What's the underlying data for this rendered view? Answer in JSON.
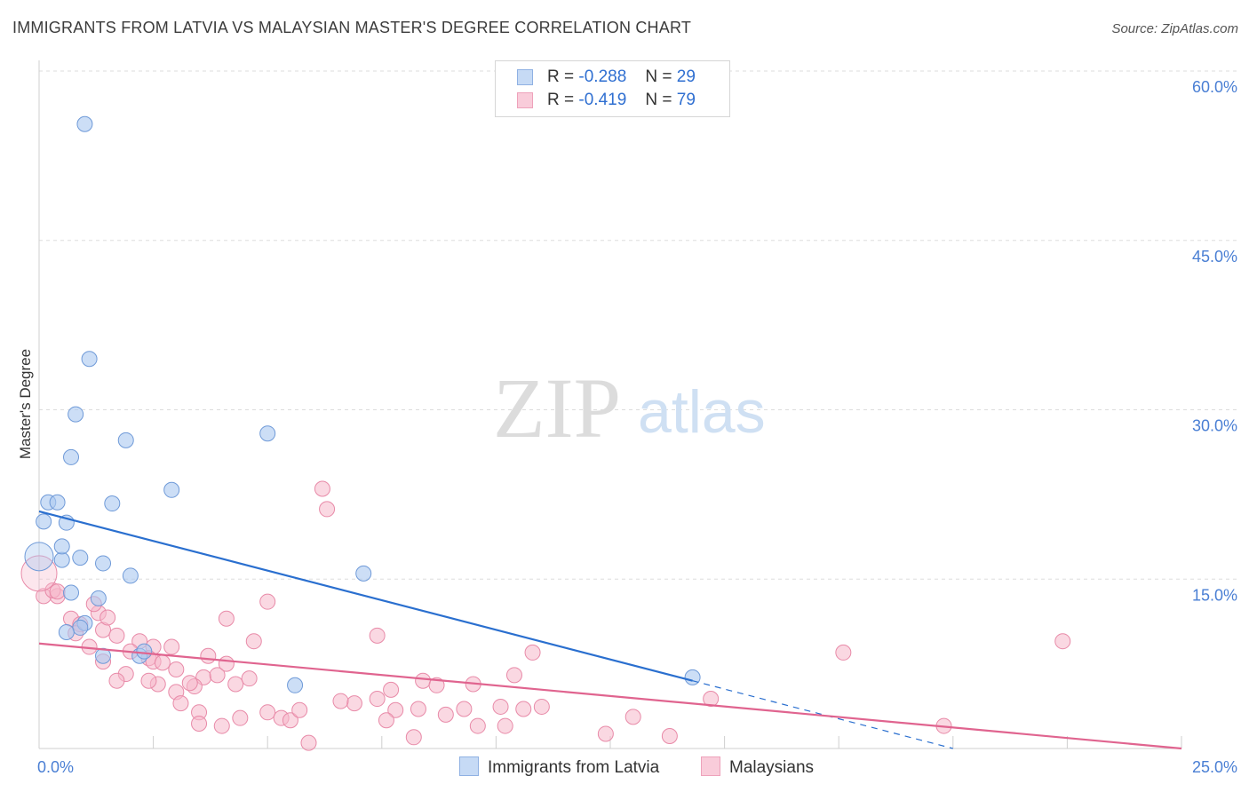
{
  "title": "IMMIGRANTS FROM LATVIA VS MALAYSIAN MASTER'S DEGREE CORRELATION CHART",
  "source": "Source: ZipAtlas.com",
  "watermark": {
    "zip": "ZIP",
    "atlas": "atlas"
  },
  "legend": {
    "rows": [
      {
        "r_label": "R =",
        "r_value": "-0.288",
        "n_label": "N =",
        "n_value": "29"
      },
      {
        "r_label": "R =",
        "r_value": "-0.419",
        "n_label": "N =",
        "n_value": "79"
      }
    ]
  },
  "colors": {
    "blue_fill": "#aac8f0",
    "blue_stroke": "#6f9ad8",
    "blue_line": "#2a6fcf",
    "pink_fill": "#f5b8cb",
    "pink_stroke": "#e88aa8",
    "pink_line": "#e0648f",
    "tick_text": "#4a7fd4",
    "grid": "#dddddd"
  },
  "chart_data": {
    "type": "scatter",
    "title": "IMMIGRANTS FROM LATVIA VS MALAYSIAN MASTER'S DEGREE CORRELATION CHART",
    "xlabel": "",
    "ylabel": "Master's Degree",
    "xlim": [
      0,
      25
    ],
    "ylim": [
      0,
      60
    ],
    "x_tick_labels": [
      "0.0%",
      "25.0%"
    ],
    "y_ticks": [
      15,
      30,
      45,
      60
    ],
    "y_tick_labels": [
      "15.0%",
      "30.0%",
      "45.0%",
      "60.0%"
    ],
    "grid": true,
    "series": [
      {
        "name": "Immigrants from Latvia",
        "color": "#aac8f0",
        "trend": {
          "x0": 0,
          "y0": 21.0,
          "x1": 14.3,
          "y1": 6.0,
          "dashed_to_x": 20.0,
          "dashed_to_y": 0.0
        },
        "points": [
          [
            0.2,
            21.8
          ],
          [
            0.4,
            21.8
          ],
          [
            0.6,
            20.0
          ],
          [
            0.1,
            20.1
          ],
          [
            0.5,
            16.7
          ],
          [
            0.9,
            16.9
          ],
          [
            0.5,
            17.9
          ],
          [
            1.0,
            55.3
          ],
          [
            1.1,
            34.5
          ],
          [
            0.8,
            29.6
          ],
          [
            0.7,
            25.8
          ],
          [
            1.9,
            27.3
          ],
          [
            2.9,
            22.9
          ],
          [
            1.6,
            21.7
          ],
          [
            1.4,
            16.4
          ],
          [
            2.0,
            15.3
          ],
          [
            5.0,
            27.9
          ],
          [
            7.1,
            15.5
          ],
          [
            1.3,
            13.3
          ],
          [
            1.0,
            11.1
          ],
          [
            0.9,
            10.7
          ],
          [
            0.6,
            10.3
          ],
          [
            1.4,
            8.2
          ],
          [
            2.2,
            8.2
          ],
          [
            2.3,
            8.6
          ],
          [
            5.6,
            5.6
          ],
          [
            14.3,
            6.3
          ],
          [
            0.0,
            17.0
          ],
          [
            0.7,
            13.8
          ]
        ]
      },
      {
        "name": "Malaysians",
        "color": "#f5b8cb",
        "trend": {
          "x0": 0,
          "y0": 9.3,
          "x1": 25,
          "y1": 0.0
        },
        "points": [
          [
            0.1,
            13.5
          ],
          [
            0.4,
            13.5
          ],
          [
            0.3,
            14.0
          ],
          [
            0.0,
            15.5
          ],
          [
            0.7,
            11.5
          ],
          [
            0.9,
            11.0
          ],
          [
            1.3,
            12.0
          ],
          [
            1.4,
            10.5
          ],
          [
            1.7,
            10.0
          ],
          [
            2.2,
            9.5
          ],
          [
            2.5,
            9.0
          ],
          [
            2.9,
            9.0
          ],
          [
            1.2,
            12.8
          ],
          [
            0.8,
            10.2
          ],
          [
            1.1,
            9.0
          ],
          [
            2.0,
            8.6
          ],
          [
            2.4,
            8.0
          ],
          [
            3.0,
            7.0
          ],
          [
            3.7,
            8.2
          ],
          [
            4.1,
            7.5
          ],
          [
            4.7,
            9.5
          ],
          [
            5.0,
            13.0
          ],
          [
            6.2,
            23.0
          ],
          [
            6.3,
            21.2
          ],
          [
            4.1,
            11.5
          ],
          [
            3.6,
            6.3
          ],
          [
            3.4,
            5.5
          ],
          [
            3.0,
            5.0
          ],
          [
            2.6,
            5.7
          ],
          [
            3.1,
            4.0
          ],
          [
            3.5,
            3.2
          ],
          [
            1.9,
            6.6
          ],
          [
            1.7,
            6.0
          ],
          [
            1.4,
            7.7
          ],
          [
            2.4,
            6.0
          ],
          [
            2.5,
            7.7
          ],
          [
            3.3,
            5.8
          ],
          [
            3.9,
            6.5
          ],
          [
            4.3,
            5.7
          ],
          [
            4.6,
            6.2
          ],
          [
            4.4,
            2.7
          ],
          [
            5.0,
            3.2
          ],
          [
            5.3,
            2.7
          ],
          [
            5.5,
            2.5
          ],
          [
            5.7,
            3.4
          ],
          [
            4.0,
            2.0
          ],
          [
            3.5,
            2.2
          ],
          [
            5.9,
            0.5
          ],
          [
            6.9,
            4.0
          ],
          [
            7.4,
            4.4
          ],
          [
            7.4,
            10.0
          ],
          [
            7.7,
            5.2
          ],
          [
            7.8,
            3.4
          ],
          [
            7.6,
            2.5
          ],
          [
            8.3,
            3.5
          ],
          [
            8.2,
            1.0
          ],
          [
            8.4,
            6.0
          ],
          [
            8.7,
            5.6
          ],
          [
            8.9,
            3.0
          ],
          [
            9.3,
            3.5
          ],
          [
            9.6,
            2.0
          ],
          [
            10.1,
            3.7
          ],
          [
            10.2,
            2.0
          ],
          [
            10.4,
            6.5
          ],
          [
            10.6,
            3.5
          ],
          [
            10.8,
            8.5
          ],
          [
            11.0,
            3.7
          ],
          [
            12.4,
            1.3
          ],
          [
            13.0,
            2.8
          ],
          [
            13.8,
            1.1
          ],
          [
            14.7,
            4.4
          ],
          [
            17.6,
            8.5
          ],
          [
            19.8,
            2.0
          ],
          [
            22.4,
            9.5
          ],
          [
            6.6,
            4.2
          ],
          [
            9.5,
            5.7
          ],
          [
            2.7,
            7.6
          ],
          [
            1.5,
            11.6
          ],
          [
            0.4,
            13.9
          ]
        ]
      }
    ]
  },
  "bottom_legend": {
    "items": [
      {
        "label": "Immigrants from Latvia"
      },
      {
        "label": "Malaysians"
      }
    ]
  }
}
